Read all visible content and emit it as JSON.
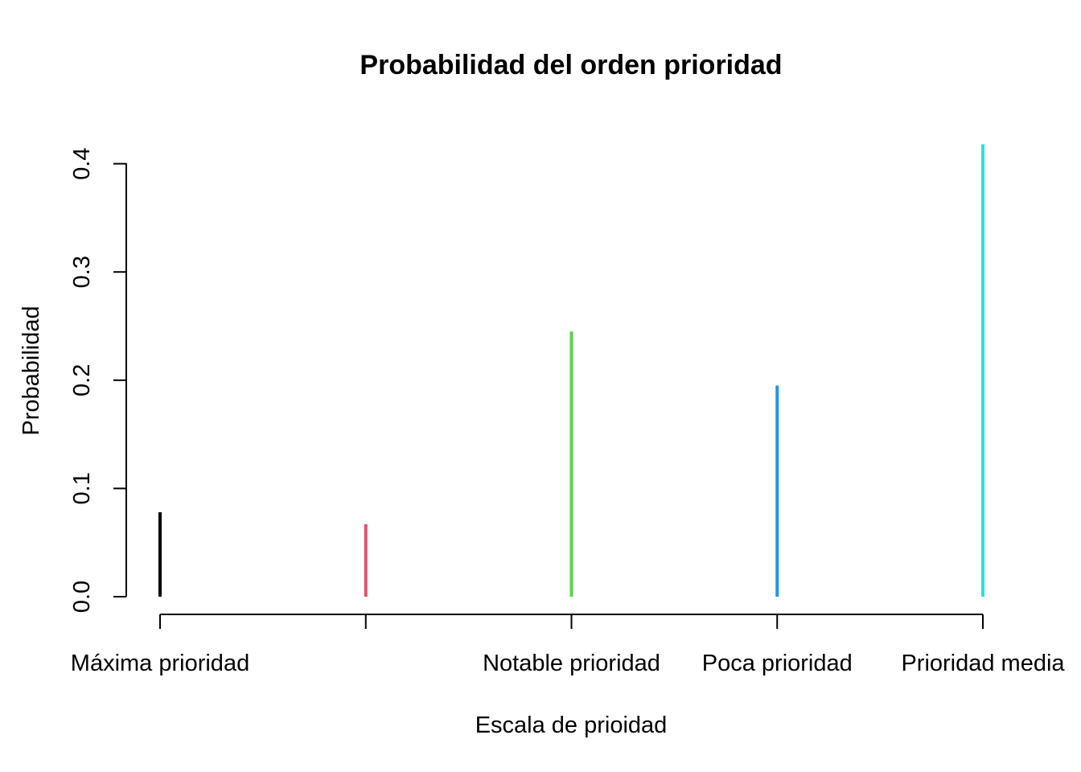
{
  "chart_data": {
    "type": "bar",
    "title": "Probabilidad del orden prioridad",
    "xlabel": "Escala de prioidad",
    "ylabel": "Probabilidad",
    "categories": [
      "Máxima prioridad",
      "",
      "Notable prioridad",
      "Poca prioridad",
      "Prioridad media"
    ],
    "values": [
      0.078,
      0.067,
      0.245,
      0.195,
      0.418
    ],
    "colors": [
      "#000000",
      "#DF536B",
      "#61D04F",
      "#2297E6",
      "#28E2E5"
    ],
    "yticks": [
      "0.0",
      "0.1",
      "0.2",
      "0.3",
      "0.4"
    ],
    "ylim": [
      0,
      0.42
    ],
    "grid": false,
    "legend": "none"
  }
}
